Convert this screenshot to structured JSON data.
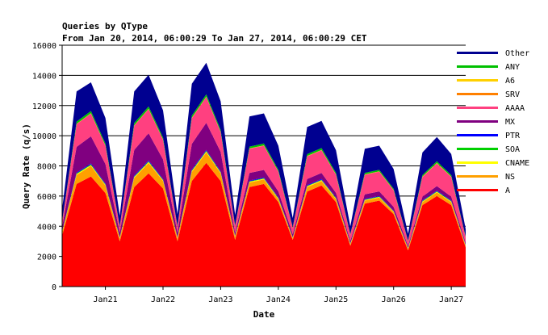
{
  "chart_data": {
    "type": "area",
    "title": "Queries by QType",
    "subtitle": "From Jan 20, 2014, 06:00:29 To Jan 27, 2014, 06:00:29 CET",
    "xlabel": "Date",
    "ylabel": "Query Rate (q/s)",
    "ylim": [
      0,
      16000
    ],
    "yticks": [
      "0",
      "2000",
      "4000",
      "6000",
      "8000",
      "10000",
      "12000",
      "14000",
      "16000"
    ],
    "xticks": [
      "Jan21",
      "Jan22",
      "Jan23",
      "Jan24",
      "Jan25",
      "Jan26",
      "Jan27"
    ],
    "x_start": "2014-01-20 06:00",
    "x_end": "2014-01-27 06:00",
    "grid": "horizontal",
    "legend_position": "right",
    "stacked": true,
    "x": [
      "Jan20 06:00",
      "Jan20 12:00",
      "Jan20 18:00",
      "Jan21 00:00",
      "Jan21 06:00",
      "Jan21 12:00",
      "Jan21 18:00",
      "Jan22 00:00",
      "Jan22 06:00",
      "Jan22 12:00",
      "Jan22 18:00",
      "Jan23 00:00",
      "Jan23 06:00",
      "Jan23 12:00",
      "Jan23 18:00",
      "Jan24 00:00",
      "Jan24 06:00",
      "Jan24 12:00",
      "Jan24 18:00",
      "Jan25 00:00",
      "Jan25 06:00",
      "Jan25 12:00",
      "Jan25 18:00",
      "Jan26 00:00",
      "Jan26 06:00",
      "Jan26 12:00",
      "Jan26 18:00",
      "Jan27 00:00",
      "Jan27 06:00"
    ],
    "series": [
      {
        "name": "A",
        "color": "#ff0000",
        "values": [
          3400,
          6800,
          7300,
          6200,
          3000,
          6600,
          7500,
          6500,
          3000,
          7000,
          8200,
          7000,
          3100,
          6600,
          6800,
          5600,
          3100,
          6300,
          6700,
          5600,
          2700,
          5500,
          5700,
          4800,
          2400,
          5400,
          6000,
          5400,
          2600
        ]
      },
      {
        "name": "NS",
        "color": "#ffa000",
        "values": [
          200,
          600,
          700,
          500,
          200,
          600,
          700,
          500,
          200,
          600,
          700,
          500,
          200,
          300,
          300,
          200,
          100,
          300,
          300,
          200,
          100,
          200,
          200,
          150,
          100,
          200,
          250,
          200,
          100
        ]
      },
      {
        "name": "CNAME",
        "color": "#ffff00",
        "values": [
          30,
          60,
          60,
          50,
          30,
          60,
          60,
          50,
          30,
          60,
          60,
          50,
          30,
          50,
          50,
          40,
          30,
          50,
          50,
          40,
          30,
          40,
          40,
          30,
          30,
          40,
          40,
          40,
          30
        ]
      },
      {
        "name": "SOA",
        "color": "#00d000",
        "values": [
          20,
          40,
          40,
          30,
          20,
          40,
          40,
          30,
          20,
          40,
          40,
          30,
          20,
          30,
          30,
          30,
          20,
          30,
          30,
          30,
          20,
          30,
          30,
          20,
          20,
          30,
          30,
          30,
          20
        ]
      },
      {
        "name": "PTR",
        "color": "#0000ff",
        "values": [
          30,
          60,
          60,
          50,
          30,
          60,
          60,
          50,
          30,
          60,
          60,
          50,
          30,
          50,
          50,
          40,
          30,
          50,
          50,
          40,
          30,
          40,
          40,
          30,
          30,
          40,
          40,
          40,
          30
        ]
      },
      {
        "name": "MX",
        "color": "#800080",
        "values": [
          300,
          1700,
          1800,
          1300,
          300,
          1700,
          1800,
          1300,
          300,
          1700,
          1800,
          1300,
          200,
          500,
          500,
          400,
          200,
          400,
          400,
          300,
          150,
          300,
          300,
          250,
          120,
          250,
          300,
          250,
          120
        ]
      },
      {
        "name": "AAAA",
        "color": "#ff4080",
        "values": [
          300,
          1500,
          1500,
          1200,
          350,
          1600,
          1600,
          1300,
          350,
          1700,
          1700,
          1300,
          400,
          1600,
          1600,
          1300,
          400,
          1500,
          1500,
          1200,
          400,
          1300,
          1300,
          1100,
          300,
          1300,
          1500,
          1300,
          350
        ]
      },
      {
        "name": "SRV",
        "color": "#ff8000",
        "values": [
          10,
          20,
          20,
          20,
          10,
          20,
          20,
          20,
          10,
          20,
          20,
          20,
          10,
          20,
          20,
          20,
          10,
          20,
          20,
          20,
          10,
          20,
          20,
          20,
          10,
          20,
          20,
          20,
          10
        ]
      },
      {
        "name": "A6",
        "color": "#ffd000",
        "values": [
          5,
          10,
          10,
          10,
          5,
          10,
          10,
          10,
          5,
          10,
          10,
          10,
          5,
          10,
          10,
          10,
          5,
          10,
          10,
          10,
          5,
          10,
          10,
          10,
          5,
          10,
          10,
          10,
          5
        ]
      },
      {
        "name": "ANY",
        "color": "#00c000",
        "values": [
          50,
          150,
          150,
          120,
          50,
          150,
          150,
          120,
          50,
          150,
          150,
          120,
          50,
          120,
          120,
          100,
          50,
          120,
          120,
          100,
          40,
          100,
          100,
          80,
          40,
          100,
          120,
          100,
          40
        ]
      },
      {
        "name": "Other",
        "color": "#000090",
        "values": [
          800,
          2000,
          1900,
          1700,
          700,
          2100,
          2100,
          1800,
          800,
          2100,
          2100,
          1900,
          700,
          2000,
          2000,
          1600,
          600,
          1800,
          1800,
          1500,
          500,
          1600,
          1600,
          1300,
          450,
          1500,
          1600,
          1400,
          500
        ]
      }
    ]
  }
}
